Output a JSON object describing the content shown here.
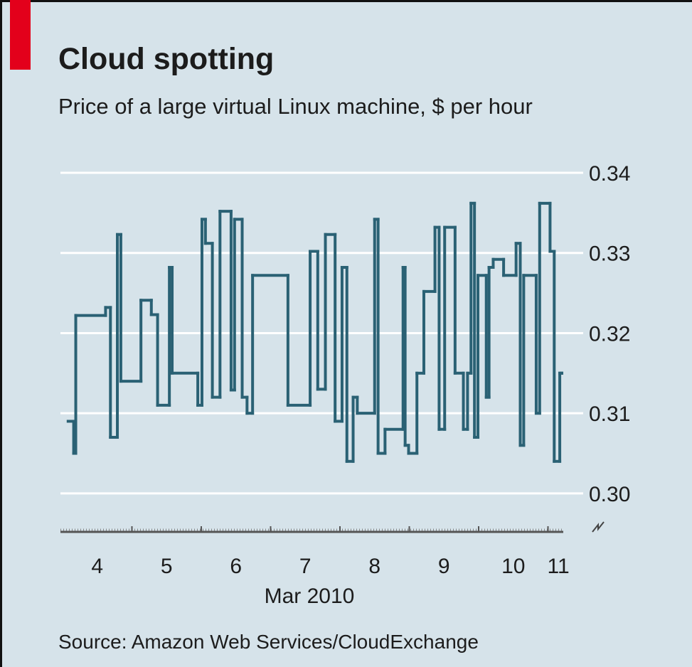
{
  "chart_data": {
    "type": "step",
    "title": "Cloud spotting",
    "subtitle": "Price of a large virtual Linux machine, $ per hour",
    "x_label": "Mar 2010",
    "source": "Source: Amazon Web Services/CloudExchange",
    "color": "#2a6174",
    "grid": true,
    "xlim": [
      4,
      11.2
    ],
    "xticks": [
      {
        "value": 4.5,
        "label": "4"
      },
      {
        "value": 5.5,
        "label": "5"
      },
      {
        "value": 6.5,
        "label": "6"
      },
      {
        "value": 7.5,
        "label": "7"
      },
      {
        "value": 8.5,
        "label": "8"
      },
      {
        "value": 9.5,
        "label": "9"
      },
      {
        "value": 10.5,
        "label": "10"
      },
      {
        "value": 11.15,
        "label": "11"
      }
    ],
    "ylim": [
      0.2952,
      0.34
    ],
    "yticks": [
      {
        "value": 0.3,
        "label": "0.30"
      },
      0.31,
      0.32,
      0.33,
      0.34
    ],
    "x": [
      4.08,
      4.16,
      4.19,
      4.62,
      4.69,
      4.79,
      4.84,
      5.13,
      5.28,
      5.37,
      5.54,
      5.58,
      5.95,
      6.01,
      6.06,
      6.16,
      6.27,
      6.43,
      6.48,
      6.59,
      6.66,
      6.74,
      7.25,
      7.57,
      7.68,
      7.79,
      7.93,
      8.03,
      8.1,
      8.19,
      8.25,
      8.5,
      8.55,
      8.65,
      8.91,
      8.94,
      8.99,
      9.11,
      9.21,
      9.37,
      9.43,
      9.51,
      9.66,
      9.78,
      9.84,
      9.89,
      9.94,
      9.99,
      10.11,
      10.15,
      10.21,
      10.36,
      10.54,
      10.6,
      10.65,
      10.83,
      10.88,
      11.03,
      11.09,
      11.17,
      11.2
    ],
    "values": [
      0.309,
      0.305,
      0.3222,
      0.3232,
      0.307,
      0.3323,
      0.314,
      0.3241,
      0.3223,
      0.311,
      0.3282,
      0.315,
      0.311,
      0.3342,
      0.3312,
      0.312,
      0.3352,
      0.3129,
      0.3342,
      0.312,
      0.31,
      0.3272,
      0.311,
      0.3302,
      0.313,
      0.3323,
      0.309,
      0.3282,
      0.304,
      0.312,
      0.31,
      0.3342,
      0.305,
      0.308,
      0.3282,
      0.306,
      0.305,
      0.315,
      0.3252,
      0.3332,
      0.308,
      0.3332,
      0.315,
      0.308,
      0.315,
      0.3362,
      0.307,
      0.3272,
      0.312,
      0.3282,
      0.3292,
      0.3272,
      0.3312,
      0.306,
      0.3272,
      0.31,
      0.3362,
      0.3302,
      0.304,
      0.315,
      0.315
    ]
  }
}
